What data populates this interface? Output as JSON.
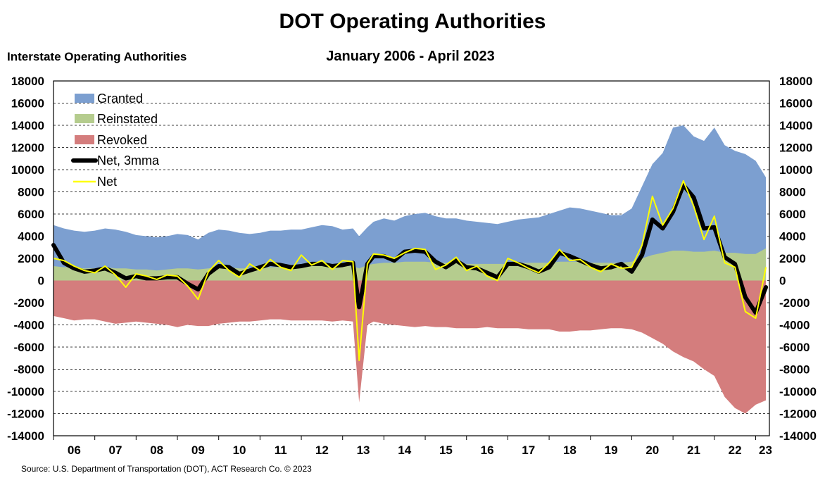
{
  "chart_data": {
    "type": "area",
    "title": "DOT Operating Authorities",
    "subtitle": "January 2006 - April 2023",
    "ylabel": "Interstate Operating Authorities",
    "source": "Source: U.S. Department of Transportation (DOT), ACT Research Co. © 2023",
    "ylim": [
      -14000,
      18000
    ],
    "yticks": [
      -14000,
      -12000,
      -10000,
      -8000,
      -6000,
      -4000,
      -2000,
      0,
      2000,
      4000,
      6000,
      8000,
      10000,
      12000,
      14000,
      16000,
      18000
    ],
    "ytick_labels": [
      "-14000",
      "-12000",
      "-10000",
      "-8000",
      "-6000",
      "-4000",
      "-2000",
      "0",
      "2000",
      "4000",
      "6000",
      "8000",
      "10000",
      "12000",
      "14000",
      "16000",
      "18000"
    ],
    "xlim": [
      2006.0,
      2023.333
    ],
    "xticks": [
      "06",
      "07",
      "08",
      "09",
      "10",
      "11",
      "12",
      "13",
      "14",
      "15",
      "16",
      "17",
      "18",
      "19",
      "20",
      "21",
      "22",
      "23"
    ],
    "grid": "horizontal dashed",
    "legend_position": "top-left",
    "x": [
      2006.0,
      2006.25,
      2006.5,
      2006.75,
      2007.0,
      2007.25,
      2007.5,
      2007.75,
      2008.0,
      2008.25,
      2008.5,
      2008.75,
      2009.0,
      2009.25,
      2009.5,
      2009.75,
      2010.0,
      2010.25,
      2010.5,
      2010.75,
      2011.0,
      2011.25,
      2011.5,
      2011.75,
      2012.0,
      2012.25,
      2012.5,
      2012.75,
      2013.0,
      2013.25,
      2013.4,
      2013.6,
      2013.75,
      2014.0,
      2014.25,
      2014.5,
      2014.75,
      2015.0,
      2015.25,
      2015.5,
      2015.75,
      2016.0,
      2016.25,
      2016.5,
      2016.75,
      2017.0,
      2017.25,
      2017.5,
      2017.75,
      2018.0,
      2018.25,
      2018.5,
      2018.75,
      2019.0,
      2019.25,
      2019.5,
      2019.75,
      2020.0,
      2020.25,
      2020.5,
      2020.75,
      2021.0,
      2021.25,
      2021.5,
      2021.75,
      2022.0,
      2022.25,
      2022.5,
      2022.75,
      2023.0,
      2023.25
    ],
    "series": [
      {
        "name": "Granted",
        "color": "#7c9fd0",
        "values": [
          5000,
          4700,
          4500,
          4400,
          4500,
          4700,
          4600,
          4400,
          4100,
          4000,
          3900,
          4000,
          4200,
          4100,
          3700,
          4300,
          4600,
          4500,
          4300,
          4200,
          4300,
          4500,
          4500,
          4600,
          4600,
          4800,
          5000,
          4900,
          4600,
          4700,
          4000,
          4800,
          5300,
          5600,
          5400,
          5800,
          6000,
          6100,
          5800,
          5600,
          5600,
          5400,
          5300,
          5200,
          5100,
          5300,
          5500,
          5600,
          5700,
          6000,
          6300,
          6600,
          6500,
          6300,
          6100,
          5900,
          5900,
          6500,
          8500,
          10500,
          11500,
          13800,
          14000,
          13000,
          12600,
          13800,
          12200,
          11700,
          11400,
          10800,
          9300
        ]
      },
      {
        "name": "Reinstated",
        "color": "#b5cc8e",
        "values": [
          1300,
          1200,
          1200,
          1100,
          1100,
          1200,
          1100,
          1100,
          1000,
          1000,
          900,
          1000,
          1100,
          1100,
          1000,
          1100,
          1200,
          1200,
          1100,
          1100,
          1100,
          1200,
          1200,
          1200,
          1300,
          1300,
          1300,
          1300,
          1300,
          1300,
          1100,
          1400,
          1500,
          1600,
          1600,
          1700,
          1700,
          1700,
          1600,
          1600,
          1600,
          1500,
          1500,
          1500,
          1500,
          1500,
          1600,
          1600,
          1600,
          1600,
          1700,
          1700,
          1700,
          1600,
          1600,
          1600,
          1600,
          1700,
          2000,
          2300,
          2500,
          2700,
          2700,
          2600,
          2600,
          2700,
          2500,
          2500,
          2400,
          2400,
          2900
        ]
      },
      {
        "name": "Revoked",
        "color": "#d47d7d",
        "values": [
          -3200,
          -3400,
          -3600,
          -3500,
          -3500,
          -3700,
          -3900,
          -3800,
          -3700,
          -3800,
          -3900,
          -4000,
          -4200,
          -4000,
          -4100,
          -4100,
          -3900,
          -3800,
          -3700,
          -3700,
          -3600,
          -3500,
          -3500,
          -3600,
          -3600,
          -3600,
          -3600,
          -3700,
          -3600,
          -3700,
          -11000,
          -4000,
          -3700,
          -3900,
          -4000,
          -4100,
          -4200,
          -4100,
          -4200,
          -4200,
          -4300,
          -4300,
          -4300,
          -4200,
          -4300,
          -4300,
          -4300,
          -4400,
          -4400,
          -4400,
          -4600,
          -4600,
          -4500,
          -4500,
          -4400,
          -4300,
          -4300,
          -4400,
          -4700,
          -5200,
          -5700,
          -6400,
          -6900,
          -7300,
          -8000,
          -8600,
          -10500,
          -11500,
          -12000,
          -11200,
          -10800
        ]
      },
      {
        "name": "Net, 3mma",
        "color": "#000000",
        "values": [
          3200,
          1600,
          1100,
          800,
          900,
          1100,
          700,
          200,
          400,
          200,
          200,
          300,
          300,
          -300,
          -800,
          600,
          1300,
          1200,
          600,
          900,
          1200,
          1500,
          1400,
          1200,
          1300,
          1500,
          1500,
          1300,
          1400,
          1600,
          -2400,
          1500,
          2200,
          2200,
          1800,
          2600,
          2700,
          2600,
          1700,
          1200,
          1800,
          1200,
          1100,
          700,
          300,
          1500,
          1500,
          1200,
          800,
          1200,
          2500,
          2200,
          1800,
          1400,
          1100,
          1200,
          1500,
          800,
          2300,
          5500,
          4700,
          6200,
          8600,
          7500,
          4700,
          4800,
          2100,
          1500,
          -1500,
          -2900,
          -600
        ]
      },
      {
        "name": "Net",
        "color": "#ffff00",
        "values": [
          2000,
          1800,
          1300,
          900,
          700,
          1300,
          500,
          -600,
          600,
          400,
          100,
          500,
          400,
          -500,
          -1700,
          800,
          1800,
          900,
          300,
          1500,
          900,
          1900,
          1200,
          900,
          2300,
          1400,
          1800,
          1000,
          1800,
          1700,
          -7200,
          1500,
          2400,
          2300,
          2000,
          2500,
          2900,
          2800,
          1000,
          1400,
          2100,
          900,
          1300,
          400,
          0,
          2000,
          1600,
          1100,
          700,
          1600,
          2800,
          1800,
          1900,
          1200,
          800,
          1500,
          1100,
          1200,
          3200,
          7600,
          5000,
          6500,
          9000,
          6700,
          3700,
          5800,
          1600,
          1200,
          -2800,
          -3400,
          1200
        ]
      }
    ]
  }
}
